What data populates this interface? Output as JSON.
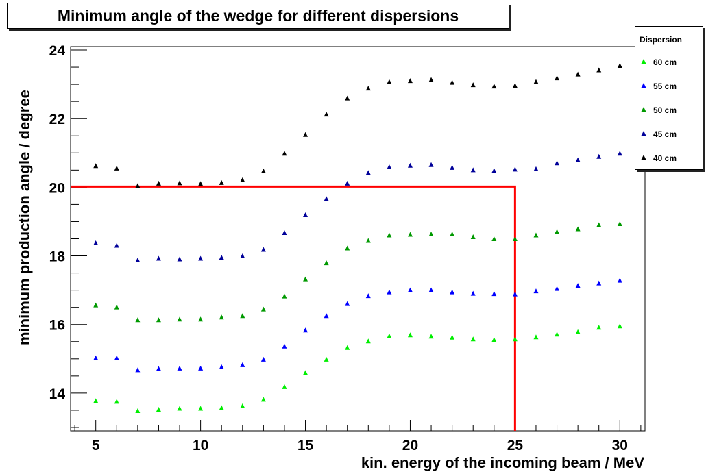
{
  "chart_data": {
    "type": "scatter",
    "title": "Minimum angle of the wedge for different dispersions",
    "xlabel": "kin. energy of the incoming beam / MeV",
    "ylabel": "minimum production angle / degree",
    "xlim": [
      3.8,
      31.2
    ],
    "ylim": [
      12.9,
      24.1
    ],
    "xticks": [
      5,
      10,
      15,
      20,
      25,
      30
    ],
    "yticks": [
      14,
      16,
      18,
      20,
      22,
      24
    ],
    "grid": false,
    "legend": {
      "title": "Dispersion",
      "placement": "top-right (outside plot)"
    },
    "x": [
      5,
      6,
      7,
      8,
      9,
      10,
      11,
      12,
      13,
      14,
      15,
      16,
      17,
      18,
      19,
      20,
      21,
      22,
      23,
      24,
      25,
      26,
      27,
      28,
      29,
      30
    ],
    "series": [
      {
        "name": "60 cm",
        "color": "#00ee00",
        "values": [
          13.77,
          13.75,
          13.48,
          13.52,
          13.55,
          13.55,
          13.57,
          13.62,
          13.81,
          14.18,
          14.59,
          14.98,
          15.32,
          15.51,
          15.66,
          15.69,
          15.65,
          15.62,
          15.57,
          15.55,
          15.57,
          15.63,
          15.71,
          15.78,
          15.91,
          15.95
        ]
      },
      {
        "name": "55 cm",
        "color": "#0000ff",
        "values": [
          15.02,
          15.02,
          14.67,
          14.71,
          14.72,
          14.72,
          14.76,
          14.82,
          14.98,
          15.36,
          15.83,
          16.25,
          16.6,
          16.83,
          16.94,
          17.0,
          17.0,
          16.94,
          16.9,
          16.89,
          16.88,
          16.97,
          17.04,
          17.13,
          17.2,
          17.28
        ]
      },
      {
        "name": "50 cm",
        "color": "#009900",
        "values": [
          16.56,
          16.5,
          16.13,
          16.13,
          16.15,
          16.15,
          16.21,
          16.25,
          16.44,
          16.82,
          17.32,
          17.79,
          18.22,
          18.44,
          18.6,
          18.62,
          18.63,
          18.63,
          18.55,
          18.49,
          18.49,
          18.6,
          18.7,
          18.78,
          18.9,
          18.93
        ]
      },
      {
        "name": "45 cm",
        "color": "#000099",
        "values": [
          18.37,
          18.3,
          17.87,
          17.92,
          17.9,
          17.92,
          17.95,
          17.99,
          18.18,
          18.67,
          19.19,
          19.66,
          20.11,
          20.42,
          20.59,
          20.63,
          20.65,
          20.57,
          20.5,
          20.48,
          20.52,
          20.53,
          20.7,
          20.79,
          20.89,
          20.98
        ]
      },
      {
        "name": "40 cm",
        "color": "#000000",
        "values": [
          20.62,
          20.55,
          20.04,
          20.11,
          20.12,
          20.1,
          20.13,
          20.21,
          20.47,
          20.98,
          21.53,
          22.12,
          22.59,
          22.88,
          23.07,
          23.1,
          23.13,
          23.05,
          22.98,
          22.94,
          22.96,
          23.07,
          23.18,
          23.29,
          23.41,
          23.54
        ]
      }
    ],
    "annotations": [
      {
        "type": "reference-line",
        "color": "#ff0000",
        "points": [
          [
            3.8,
            20.02
          ],
          [
            25.0,
            20.02
          ],
          [
            25.0,
            12.9
          ]
        ]
      }
    ]
  }
}
